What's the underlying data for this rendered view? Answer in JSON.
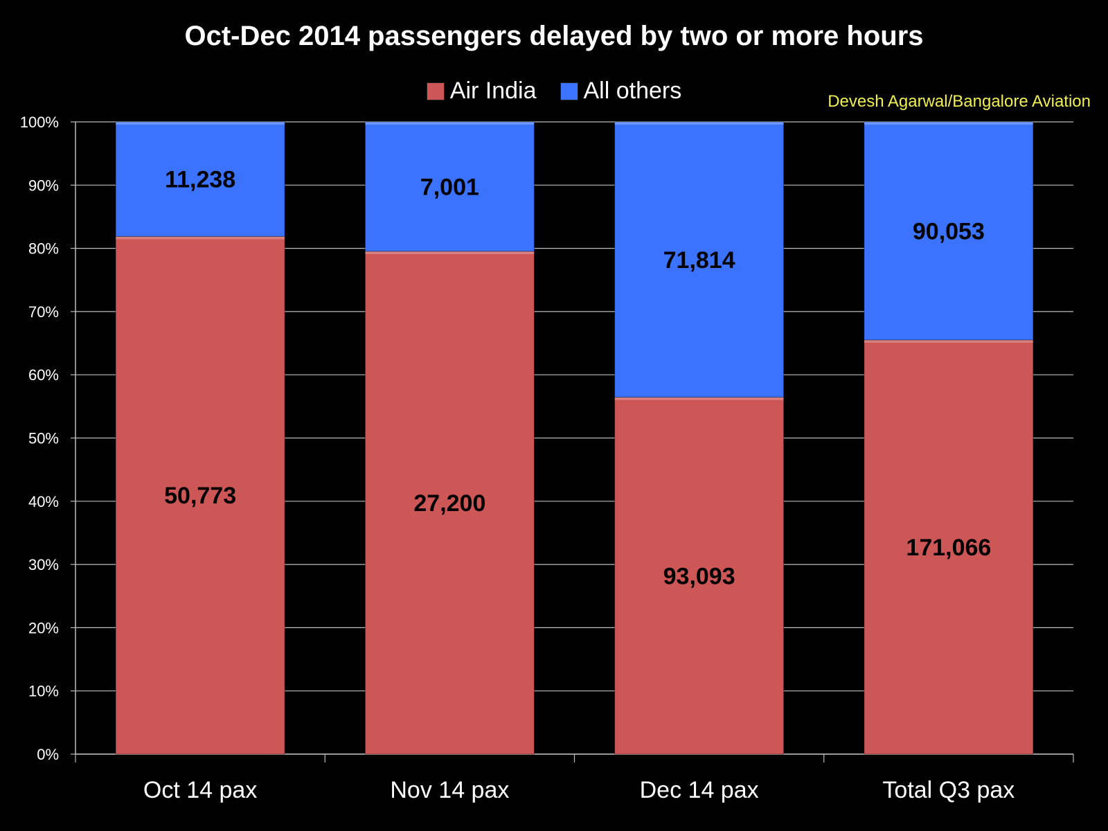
{
  "colors": {
    "air_india": "#cd5756",
    "all_others": "#3b72fe",
    "background": "#000000",
    "credit": "#f0f050"
  },
  "credit": "Devesh Agarwal/Bangalore Aviation",
  "chart_data": {
    "type": "bar",
    "stacked": "percent",
    "title": "Oct-Dec 2014 passengers delayed by two or more hours",
    "xlabel": "",
    "ylabel": "",
    "ylim": [
      0,
      100
    ],
    "y_ticks": [
      "0%",
      "10%",
      "20%",
      "30%",
      "40%",
      "50%",
      "60%",
      "70%",
      "80%",
      "90%",
      "100%"
    ],
    "categories": [
      "Oct 14 pax",
      "Nov 14 pax",
      "Dec 14 pax",
      "Total Q3 pax"
    ],
    "series": [
      {
        "name": "Air India",
        "values": [
          50773,
          27200,
          93093,
          171066
        ],
        "labels": [
          "50,773",
          "27,200",
          "93,093",
          "171,066"
        ]
      },
      {
        "name": "All others",
        "values": [
          11238,
          7001,
          71814,
          90053
        ],
        "labels": [
          "11,238",
          "7,001",
          "71,814",
          "90,053"
        ]
      }
    ],
    "legend_position": "top",
    "grid": true
  }
}
